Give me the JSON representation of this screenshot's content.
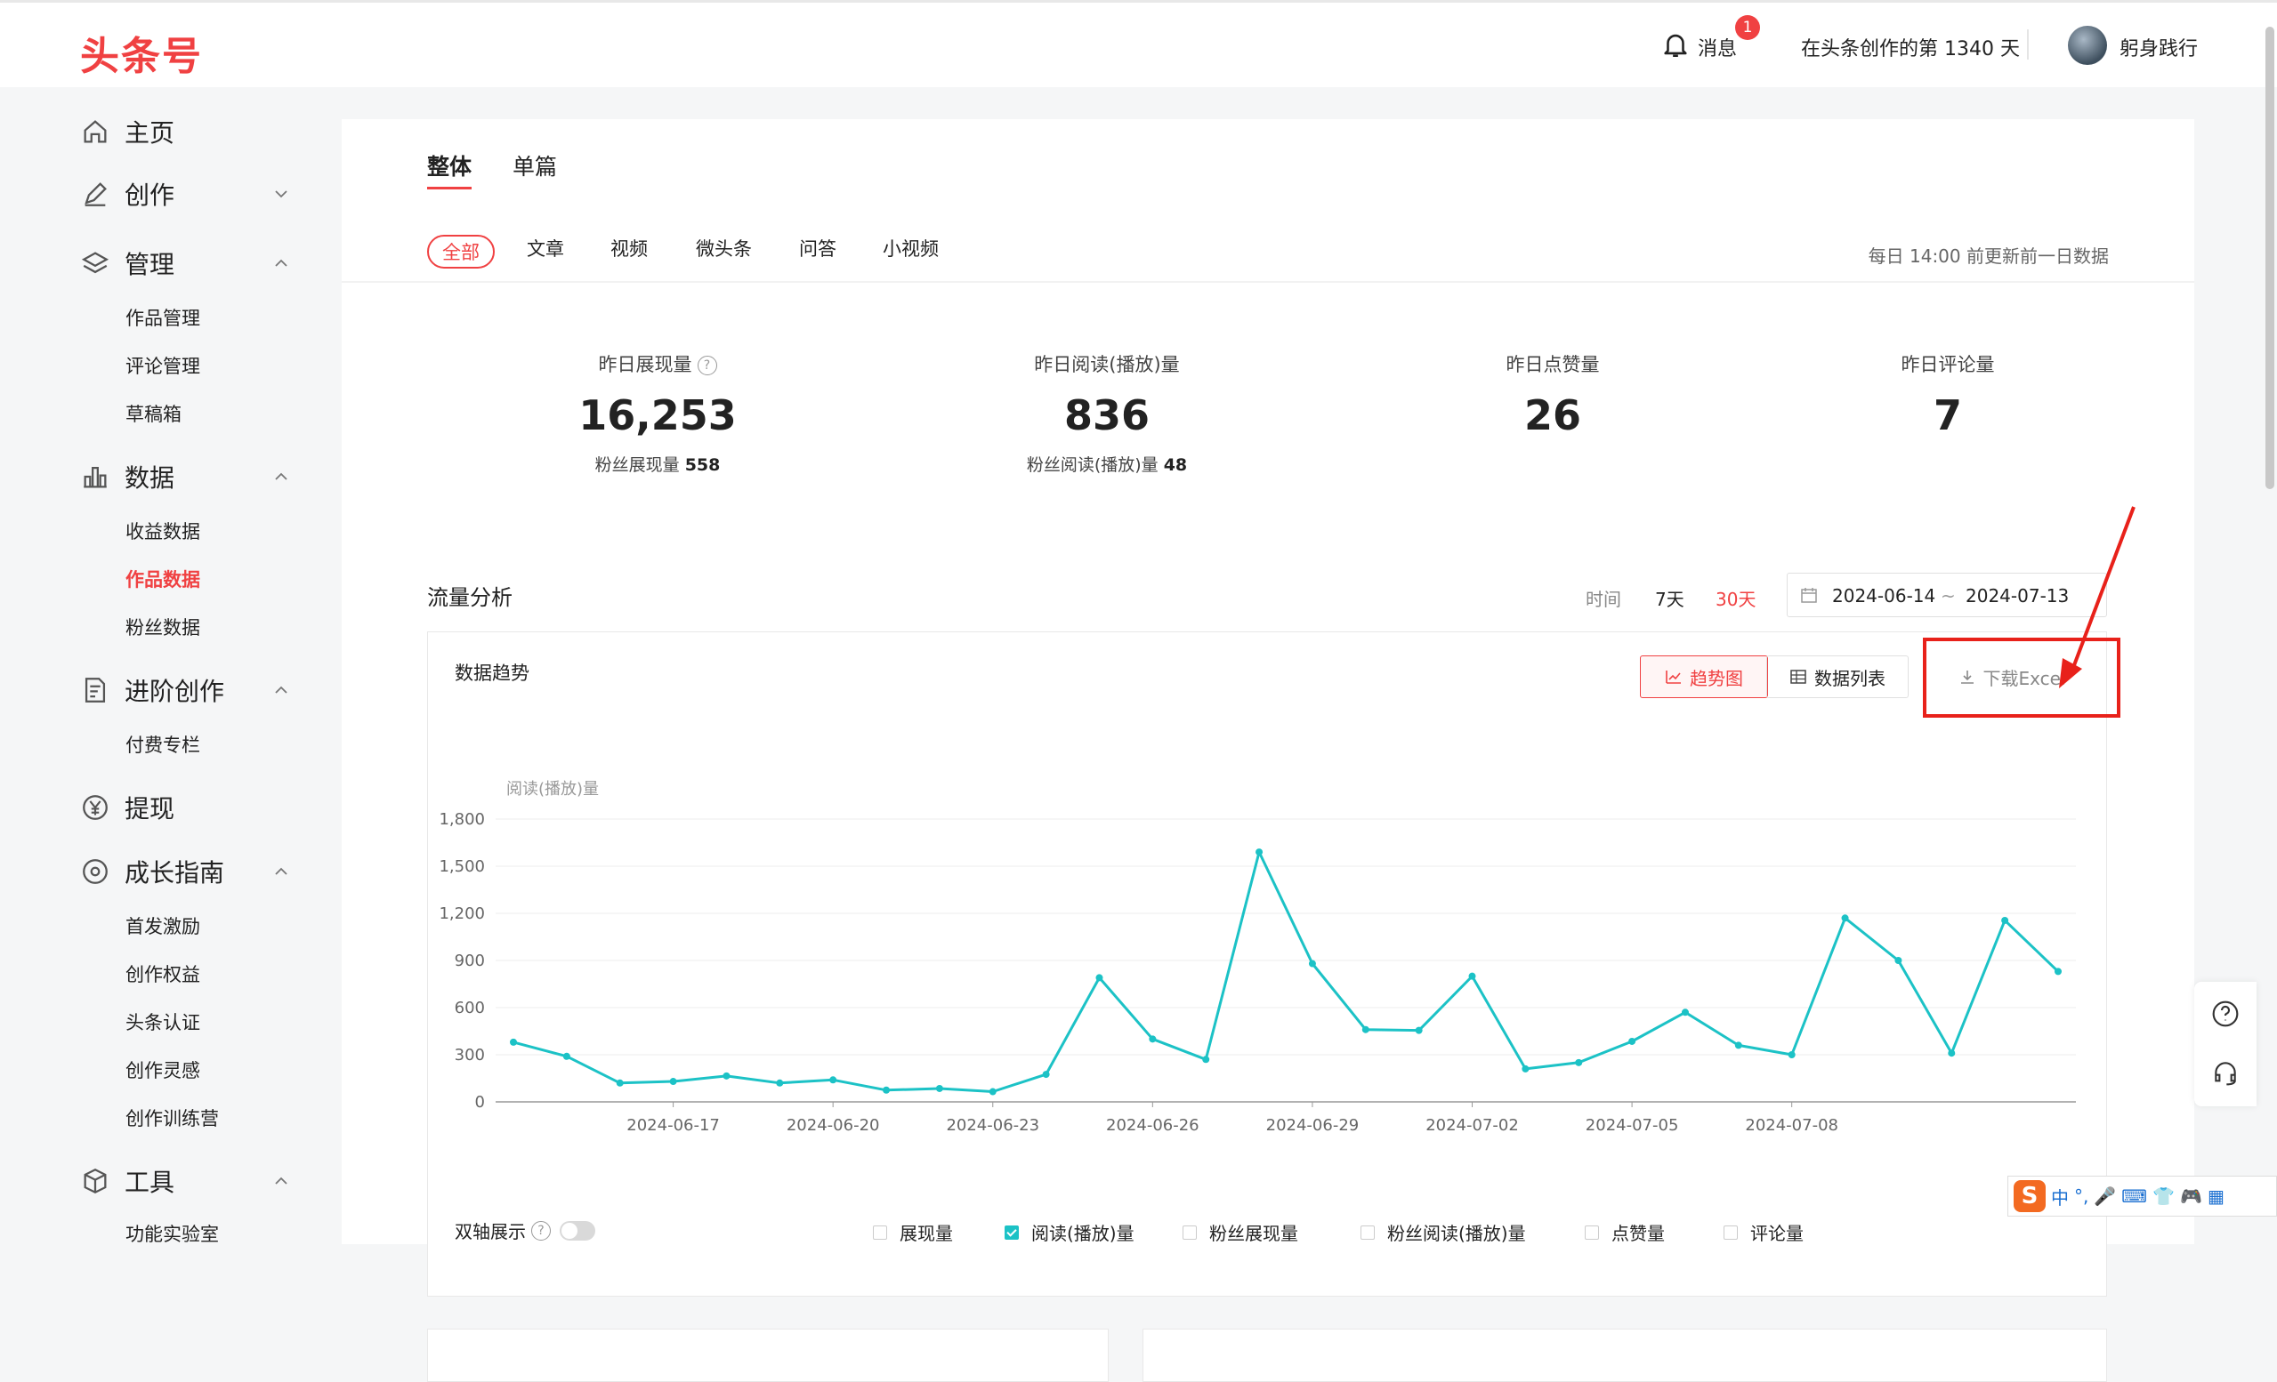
{
  "header": {
    "logo": "头条号",
    "messages_label": "消息",
    "messages_badge": "1",
    "creation_days": "在头条创作的第 1340 天",
    "username": "躬身践行"
  },
  "sidebar": {
    "home": "主页",
    "create": "创作",
    "manage": "管理",
    "manage_items": [
      "作品管理",
      "评论管理",
      "草稿箱"
    ],
    "data": "数据",
    "data_items": [
      "收益数据",
      "作品数据",
      "粉丝数据"
    ],
    "advanced": "进阶创作",
    "advanced_items": [
      "付费专栏"
    ],
    "withdraw": "提现",
    "growth": "成长指南",
    "growth_items": [
      "首发激励",
      "创作权益",
      "头条认证",
      "创作灵感",
      "创作训练营"
    ],
    "tools": "工具",
    "tools_items": [
      "功能实验室"
    ]
  },
  "tabs": [
    "整体",
    "单篇"
  ],
  "filters": [
    "全部",
    "文章",
    "视频",
    "微头条",
    "问答",
    "小视频"
  ],
  "update_note": "每日 14:00 前更新前一日数据",
  "stats": [
    {
      "title": "昨日展现量",
      "value": "16,253",
      "sub_label": "粉丝展现量",
      "sub_value": "558"
    },
    {
      "title": "昨日阅读(播放)量",
      "value": "836",
      "sub_label": "粉丝阅读(播放)量",
      "sub_value": "48"
    },
    {
      "title": "昨日点赞量",
      "value": "26"
    },
    {
      "title": "昨日评论量",
      "value": "7"
    }
  ],
  "traffic": {
    "title": "流量分析",
    "time_label": "时间",
    "range_7": "7天",
    "range_30": "30天",
    "date_start": "2024-06-14",
    "date_sep": "~",
    "date_end": "2024-07-13"
  },
  "trend": {
    "title": "数据趋势",
    "btn_trend": "趋势图",
    "btn_list": "数据列表",
    "btn_download": "下载Excel",
    "dual_axis": "双轴展示",
    "legend": [
      {
        "label": "展现量",
        "checked": false
      },
      {
        "label": "阅读(播放)量",
        "checked": true
      },
      {
        "label": "粉丝展现量",
        "checked": false
      },
      {
        "label": "粉丝阅读(播放)量",
        "checked": false
      },
      {
        "label": "点赞量",
        "checked": false
      },
      {
        "label": "评论量",
        "checked": false
      }
    ]
  },
  "chart_data": {
    "type": "line",
    "ylabel": "阅读(播放)量",
    "ylim": [
      0,
      1800
    ],
    "yticks": [
      "0",
      "300",
      "600",
      "900",
      "1,200",
      "1,500",
      "1,800"
    ],
    "xtick_labels": [
      "2024-06-17",
      "2024-06-20",
      "2024-06-23",
      "2024-06-26",
      "2024-06-29",
      "2024-07-02",
      "2024-07-05",
      "2024-07-08"
    ],
    "x": [
      "2024-06-14",
      "2024-06-15",
      "2024-06-16",
      "2024-06-17",
      "2024-06-18",
      "2024-06-19",
      "2024-06-20",
      "2024-06-21",
      "2024-06-22",
      "2024-06-23",
      "2024-06-24",
      "2024-06-25",
      "2024-06-26",
      "2024-06-27",
      "2024-06-28",
      "2024-06-29",
      "2024-06-30",
      "2024-07-01",
      "2024-07-02",
      "2024-07-03",
      "2024-07-04",
      "2024-07-05",
      "2024-07-06",
      "2024-07-07",
      "2024-07-08",
      "2024-07-09",
      "2024-07-10",
      "2024-07-11",
      "2024-07-12",
      "2024-07-13"
    ],
    "series": [
      {
        "name": "阅读(播放)量",
        "color": "#1cc2c6",
        "values": [
          380,
          290,
          120,
          130,
          165,
          120,
          140,
          75,
          85,
          65,
          175,
          790,
          400,
          270,
          1590,
          880,
          460,
          455,
          800,
          210,
          250,
          385,
          570,
          360,
          300,
          1170,
          900,
          310,
          1155,
          830
        ]
      }
    ],
    "grid": true
  },
  "colors": {
    "accent": "#f04142",
    "series": "#1cc2c6",
    "highlight": "#e8211a"
  }
}
